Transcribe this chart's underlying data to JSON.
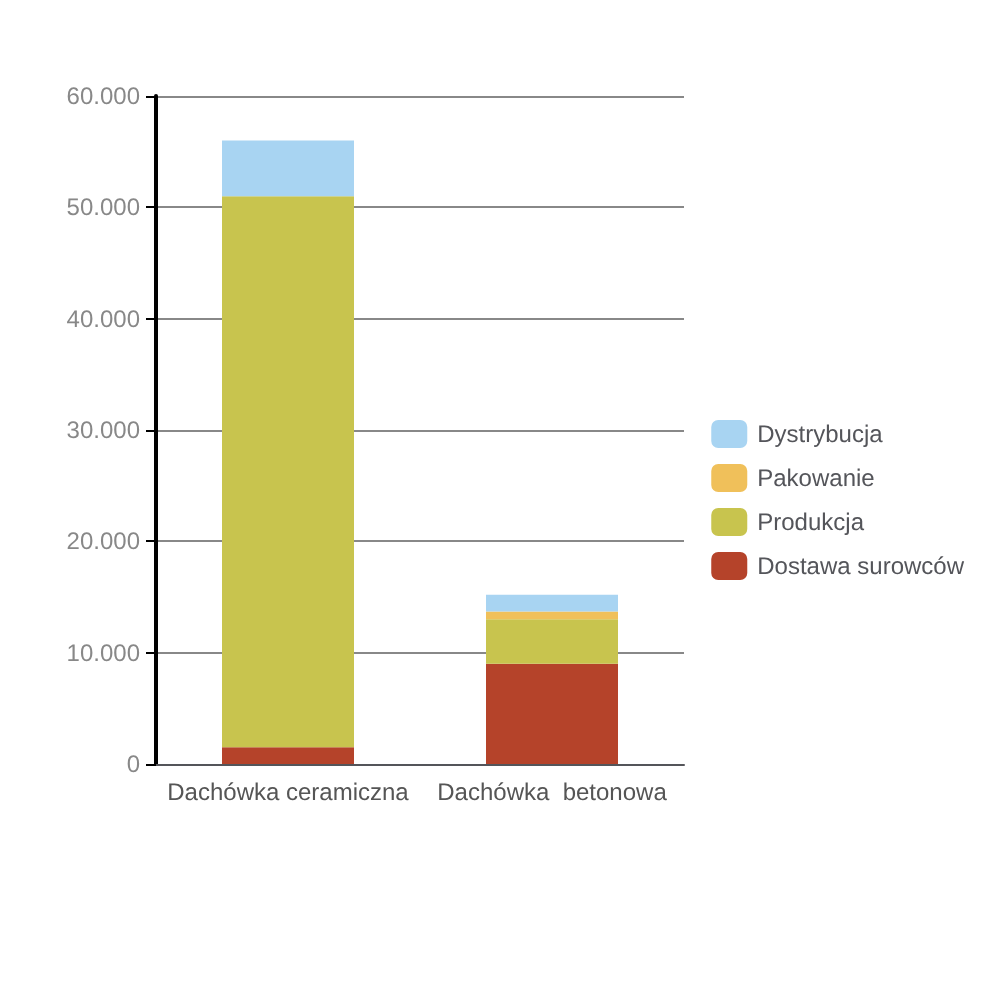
{
  "chart_data": {
    "type": "bar",
    "stacked": true,
    "categories": [
      "Dachówka ceramiczna",
      "Dachówka  betonowa"
    ],
    "series": [
      {
        "name": "Dostawa surowców",
        "color": "#b5432a",
        "values": [
          1500,
          9000
        ]
      },
      {
        "name": "Produkcja",
        "color": "#c8c44e",
        "values": [
          49500,
          4000
        ]
      },
      {
        "name": "Pakowanie",
        "color": "#f0c05a",
        "values": [
          0,
          700
        ]
      },
      {
        "name": "Dystrybucja",
        "color": "#a8d4f2",
        "values": [
          5000,
          1500
        ]
      }
    ],
    "ylim": [
      0,
      60000
    ],
    "yticks": [
      0,
      {
        "value": 10000,
        "label": "10.000"
      },
      {
        "value": 20000,
        "label": "20.000"
      },
      {
        "value": 30000,
        "label": "30.000"
      },
      {
        "value": 40000,
        "label": "40.000"
      },
      {
        "value": 50000,
        "label": "50.000"
      },
      {
        "value": 60000,
        "label": "60.000"
      }
    ],
    "grid": "y",
    "legend": "right"
  }
}
